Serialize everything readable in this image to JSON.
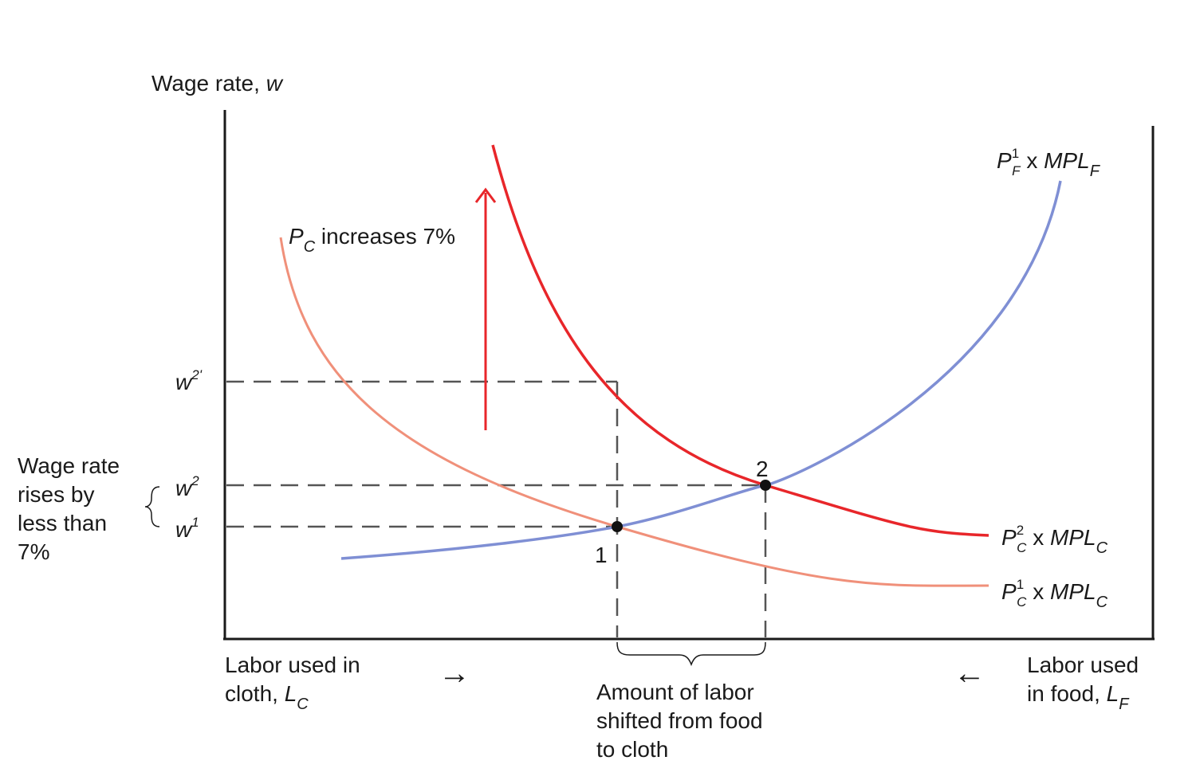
{
  "axes": {
    "y_label": "Wage rate, ",
    "y_label_var": "w",
    "x_left_label_line1": "Labor used in",
    "x_left_label_line2": "cloth, ",
    "x_left_var": "L",
    "x_left_sub": "C",
    "x_right_label_line1": "Labor used",
    "x_right_label_line2": "in food, ",
    "x_right_var": "L",
    "x_right_sub": "F",
    "left_arrow_glyph": "→",
    "right_arrow_glyph": "←"
  },
  "wages": {
    "w2prime": "w",
    "w2prime_sup": "2'",
    "w2": "w",
    "w2_sup": "2",
    "w1": "w",
    "w1_sup": "1"
  },
  "curves": {
    "food": {
      "p": "P",
      "sup": "1",
      "sub": "F",
      "rest": " x ",
      "mpl": "MPL",
      "mpl_sub": "F",
      "color": "#7f8fd4"
    },
    "cloth_new": {
      "p": "P",
      "sup": "2",
      "sub": "C",
      "rest": " x ",
      "mpl": "MPL",
      "mpl_sub": "C",
      "color": "#e8262a"
    },
    "cloth_old": {
      "p": "P",
      "sup": "1",
      "sub": "C",
      "rest": " x ",
      "mpl": "MPL",
      "mpl_sub": "C",
      "color": "#f0907a"
    }
  },
  "annotations": {
    "pc_var": "P",
    "pc_sub": "C",
    "pc_text": " increases 7%",
    "wage_rise_lines": [
      "Wage rate",
      "rises by",
      "less than",
      "7%"
    ],
    "point1": "1",
    "point2": "2",
    "shift_lines": [
      "Amount of labor",
      "shifted from food",
      "to cloth"
    ]
  }
}
